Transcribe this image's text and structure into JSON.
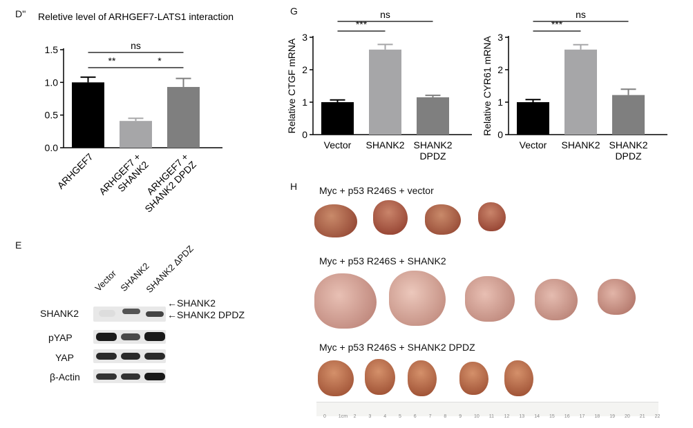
{
  "panels": {
    "D": "D''",
    "G": "G",
    "E": "E",
    "H": "H"
  },
  "chart_data": [
    {
      "type": "bar",
      "title": "Reletive level of ARHGEF7-LATS1 interaction",
      "categories": [
        "ARHGEF7",
        "ARHGEF7 + SHANK2",
        "ARHGEF7 + SHANK2 DPDZ"
      ],
      "category_lines": [
        [
          "ARHGEF7"
        ],
        [
          "ARHGEF7 +",
          "SHANK2"
        ],
        [
          "ARHGEF7 +",
          "SHANK2 DPDZ"
        ]
      ],
      "values": [
        1.0,
        0.41,
        0.93
      ],
      "errors": [
        0.08,
        0.04,
        0.13
      ],
      "colors": [
        "#000000",
        "#a6a6a8",
        "#7f7f7f"
      ],
      "ylim": [
        0,
        1.5
      ],
      "yticks": [
        "0.0",
        "0.5",
        "1.0",
        "1.5"
      ],
      "ytick_values": [
        0,
        0.5,
        1.0,
        1.5
      ],
      "ylabel": "",
      "xlabel": "",
      "significance": [
        {
          "from": 0,
          "to": 2,
          "label": "ns"
        },
        {
          "from": 0,
          "to": 1,
          "label": "**"
        },
        {
          "from": 1,
          "to": 2,
          "label": "*"
        }
      ]
    },
    {
      "type": "bar",
      "title": "",
      "categories": [
        "Vector",
        "SHANK2",
        "SHANK2 DPDZ"
      ],
      "category_lines": [
        [
          "Vector"
        ],
        [
          "SHANK2"
        ],
        [
          "SHANK2",
          "DPDZ"
        ]
      ],
      "values": [
        1.0,
        2.62,
        1.15
      ],
      "errors": [
        0.07,
        0.16,
        0.06
      ],
      "colors": [
        "#000000",
        "#a6a6a8",
        "#7f7f7f"
      ],
      "ylim": [
        0,
        3
      ],
      "yticks": [
        "0",
        "1",
        "2",
        "3"
      ],
      "ytick_values": [
        0,
        1,
        2,
        3
      ],
      "ylabel": "Relative CTGF mRNA",
      "xlabel": "",
      "significance": [
        {
          "from": 0,
          "to": 2,
          "label": "ns"
        },
        {
          "from": 0,
          "to": 1,
          "label": "***"
        }
      ]
    },
    {
      "type": "bar",
      "title": "",
      "categories": [
        "Vector",
        "SHANK2",
        "SHANK2 DPDZ"
      ],
      "category_lines": [
        [
          "Vector"
        ],
        [
          "SHANK2"
        ],
        [
          "SHANK2",
          "DPDZ"
        ]
      ],
      "values": [
        1.0,
        2.62,
        1.22
      ],
      "errors": [
        0.08,
        0.15,
        0.18
      ],
      "colors": [
        "#000000",
        "#a6a6a8",
        "#7f7f7f"
      ],
      "ylim": [
        0,
        3
      ],
      "yticks": [
        "0",
        "1",
        "2",
        "3"
      ],
      "ytick_values": [
        0,
        1,
        2,
        3
      ],
      "ylabel": "Relative CYR61 mRNA",
      "xlabel": "",
      "significance": [
        {
          "from": 0,
          "to": 2,
          "label": "ns"
        },
        {
          "from": 0,
          "to": 1,
          "label": "***"
        }
      ]
    }
  ],
  "blot": {
    "lanes": [
      "Vector",
      "SHANK2",
      "SHANK2 ΔPDZ"
    ],
    "rows": [
      "SHANK2",
      "pYAP",
      "YAP",
      "β-Actin"
    ],
    "arrow_shank2": "←SHANK2",
    "arrow_shank2_dpdz": "←SHANK2 DPDZ"
  },
  "tumors": {
    "groups": [
      {
        "title": "Myc + p53 R246S + vector"
      },
      {
        "title": "Myc + p53 R246S + SHANK2"
      },
      {
        "title": "Myc + p53 R246S + SHANK2 DPDZ"
      }
    ],
    "ruler_labels": [
      "0",
      "1cm",
      "2",
      "3",
      "4",
      "5",
      "6",
      "7",
      "8",
      "9",
      "10",
      "11",
      "12",
      "13",
      "14",
      "15",
      "16",
      "17",
      "18",
      "19",
      "20",
      "21",
      "22"
    ]
  }
}
